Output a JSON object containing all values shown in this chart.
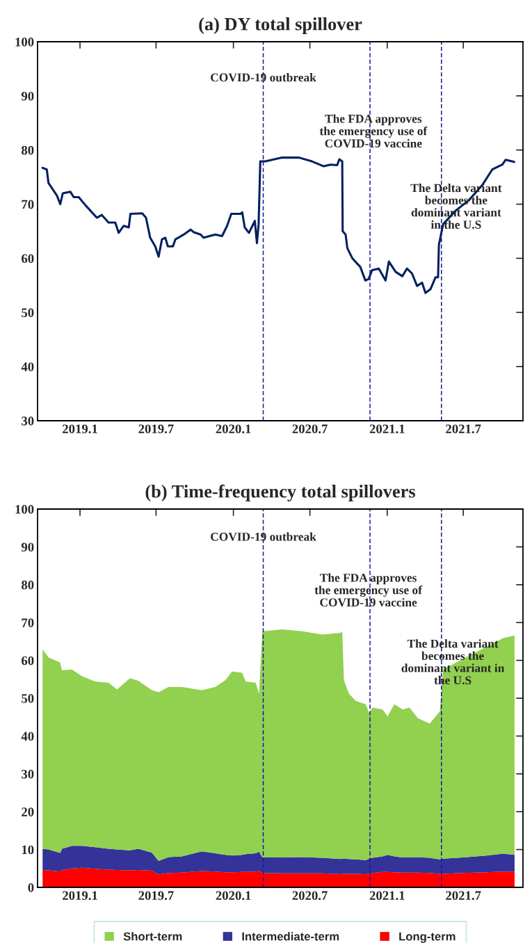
{
  "chart_data": [
    {
      "type": "line",
      "title": "(a) DY total spillover",
      "series": [
        {
          "color": "#002060",
          "x": [
            "2018-10-04",
            "2018-10-14",
            "2018-10-18",
            "2018-11-07",
            "2018-11-15",
            "2018-11-21",
            "2018-12-09",
            "2018-12-17",
            "2018-12-29",
            "2019-01-14",
            "2019-02-10",
            "2019-02-22",
            "2019-03-10",
            "2019-03-26",
            "2019-04-03",
            "2019-04-15",
            "2019-04-27",
            "2019-05-01",
            "2019-05-29",
            "2019-06-07",
            "2019-06-17",
            "2019-06-29",
            "2019-07-07",
            "2019-07-15",
            "2019-07-23",
            "2019-07-29",
            "2019-08-10",
            "2019-08-16",
            "2019-09-05",
            "2019-09-21",
            "2019-09-29",
            "2019-10-15",
            "2019-10-22",
            "2019-11-19",
            "2019-12-05",
            "2019-12-17",
            "2019-12-27",
            "2020-01-18",
            "2020-01-22",
            "2020-01-28",
            "2020-02-07",
            "2020-02-21",
            "2020-02-26",
            "2020-03-01",
            "2020-03-05",
            "2020-03-17",
            "2020-04-26",
            "2020-06-05",
            "2020-07-06",
            "2020-08-03",
            "2020-08-19",
            "2020-09-04",
            "2020-09-09",
            "2020-09-16",
            "2020-09-17",
            "2020-09-24",
            "2020-09-28",
            "2020-10-10",
            "2020-10-29",
            "2020-11-10",
            "2020-11-18",
            "2020-11-26",
            "2020-12-12",
            "2020-12-28",
            "2021-01-05",
            "2021-01-21",
            "2021-02-06",
            "2021-02-17",
            "2021-03-01",
            "2021-03-13",
            "2021-03-25",
            "2021-04-02",
            "2021-04-14",
            "2021-04-26",
            "2021-05-02",
            "2021-05-04",
            "2021-05-14",
            "2021-06-13",
            "2021-07-14",
            "2021-08-15",
            "2021-09-08",
            "2021-10-02",
            "2021-10-10",
            "2021-10-30"
          ],
          "values": [
            76.7,
            76.4,
            73.9,
            71.6,
            70.0,
            72.0,
            72.3,
            71.3,
            71.3,
            69.8,
            67.5,
            68.0,
            66.6,
            66.6,
            64.7,
            66.0,
            65.7,
            68.2,
            68.3,
            67.5,
            63.8,
            62.2,
            60.3,
            63.5,
            63.8,
            62.2,
            62.2,
            63.5,
            64.4,
            65.3,
            64.8,
            64.4,
            63.8,
            64.4,
            64.1,
            66.0,
            68.2,
            68.2,
            68.5,
            65.7,
            64.7,
            66.9,
            62.8,
            66.3,
            77.9,
            77.9,
            78.6,
            78.6,
            77.9,
            77.0,
            77.3,
            77.2,
            78.3,
            77.9,
            65.0,
            64.4,
            61.9,
            60.0,
            58.4,
            55.9,
            56.2,
            57.8,
            58.1,
            55.9,
            59.4,
            57.5,
            56.7,
            58.1,
            57.2,
            54.9,
            55.5,
            53.6,
            54.3,
            56.5,
            56.5,
            62.5,
            66.3,
            68.8,
            70.7,
            73.5,
            76.4,
            77.3,
            78.2,
            77.8
          ]
        }
      ],
      "xlim": [
        "2018-09-22",
        "2021-11-20"
      ],
      "xticks": [
        {
          "value": "2019-01-01",
          "label": "2019.1"
        },
        {
          "value": "2019-07-01",
          "label": "2019.7"
        },
        {
          "value": "2020-01-01",
          "label": "2020.1"
        },
        {
          "value": "2020-07-01",
          "label": "2020.7"
        },
        {
          "value": "2021-01-01",
          "label": "2021.1"
        },
        {
          "value": "2021-07-01",
          "label": "2021.7"
        }
      ],
      "ylim": [
        30,
        100
      ],
      "yticks": [
        30,
        40,
        50,
        60,
        70,
        80,
        90,
        100
      ],
      "grid": false,
      "line_style": "solid",
      "marker": "none",
      "ref_lines": [
        {
          "axis": "x",
          "value": "2020-03-12",
          "color": "#1a1a99",
          "line_style": "dashed"
        },
        {
          "axis": "x",
          "value": "2020-11-21",
          "color": "#1a1a99",
          "line_style": "dashed"
        },
        {
          "axis": "x",
          "value": "2021-05-10",
          "color": "#1a1a99",
          "line_style": "dashed"
        }
      ],
      "annotations": [
        {
          "text": "COVID-19 outbreak",
          "x": "2020-03-12",
          "y": 93.2
        },
        {
          "text": "The FDA approves\nthe emergency use of\nCOVID-19 vaccine",
          "x": "2020-11-29",
          "y": 83.3
        },
        {
          "text": "The Delta variant\nbecomes the\ndominant variant\nin the U.S",
          "x": "2021-06-14",
          "y": 69.4
        }
      ]
    },
    {
      "type": "area",
      "title": "(b) Time-frequency total spillovers",
      "stacked": true,
      "x": [
        "2018-10-04",
        "2018-10-18",
        "2018-11-15",
        "2018-11-19",
        "2018-12-13",
        "2019-01-06",
        "2019-02-06",
        "2019-03-10",
        "2019-03-30",
        "2019-04-30",
        "2019-05-20",
        "2019-06-21",
        "2019-07-07",
        "2019-07-31",
        "2019-08-31",
        "2019-10-18",
        "2019-11-19",
        "2019-12-13",
        "2019-12-29",
        "2020-01-22",
        "2020-01-30",
        "2020-02-23",
        "2020-03-02",
        "2020-03-10",
        "2020-04-27",
        "2020-06-13",
        "2020-07-31",
        "2020-09-12",
        "2020-09-16",
        "2020-09-20",
        "2020-10-02",
        "2020-10-18",
        "2020-11-11",
        "2020-11-19",
        "2020-11-27",
        "2020-12-21",
        "2021-01-02",
        "2021-01-18",
        "2021-02-07",
        "2021-02-23",
        "2021-03-15",
        "2021-04-12",
        "2021-05-06",
        "2021-05-14",
        "2021-06-30",
        "2021-08-25",
        "2021-10-04",
        "2021-10-31"
      ],
      "series": [
        {
          "name": "Long-term",
          "color": "#ff0000",
          "values": [
            4.6,
            4.5,
            4.2,
            4.6,
            5.0,
            5.2,
            4.9,
            4.7,
            4.6,
            4.5,
            4.6,
            4.4,
            3.4,
            3.8,
            3.9,
            4.3,
            4.2,
            4.0,
            4.0,
            4.1,
            4.2,
            4.2,
            4.3,
            3.8,
            3.7,
            3.7,
            3.7,
            3.5,
            3.6,
            3.6,
            3.6,
            3.6,
            3.5,
            3.6,
            3.8,
            4.1,
            4.1,
            4.0,
            3.9,
            3.9,
            3.9,
            3.8,
            3.6,
            3.6,
            3.8,
            4.0,
            4.2,
            4.2
          ]
        },
        {
          "name": "Intermediate-term",
          "color": "#333399",
          "values": [
            5.6,
            5.5,
            4.9,
            5.6,
            6.0,
            5.8,
            5.7,
            5.5,
            5.4,
            5.3,
            5.6,
            4.8,
            3.6,
            4.2,
            4.3,
            5.2,
            4.8,
            4.6,
            4.4,
            4.5,
            4.6,
            4.8,
            5.1,
            4.1,
            4.2,
            4.3,
            4.1,
            4.0,
            4.0,
            4.0,
            3.9,
            3.8,
            3.7,
            4.0,
            4.0,
            4.1,
            4.5,
            4.2,
            4.0,
            4.0,
            4.1,
            4.0,
            3.8,
            4.0,
            4.1,
            4.4,
            4.7,
            4.4
          ]
        },
        {
          "name": "Short-term",
          "color": "#92d050",
          "values": [
            52.7,
            50.8,
            50.3,
            47.2,
            46.6,
            44.8,
            43.8,
            43.9,
            42.3,
            45.5,
            44.4,
            42.9,
            44.6,
            45.0,
            44.8,
            42.6,
            44.0,
            46.2,
            48.7,
            48.1,
            45.6,
            45.1,
            41.8,
            59.8,
            60.3,
            59.7,
            59.0,
            59.8,
            60.1,
            47.2,
            43.7,
            41.9,
            41.2,
            38.5,
            39.7,
            38.8,
            36.6,
            40.2,
            39.1,
            39.6,
            36.7,
            35.5,
            39.1,
            50.0,
            52.5,
            55.2,
            57.0,
            58.0
          ]
        }
      ],
      "xlim": [
        "2018-09-22",
        "2021-11-20"
      ],
      "xticks": [
        {
          "value": "2019-01-01",
          "label": "2019.1"
        },
        {
          "value": "2019-07-01",
          "label": "2019.7"
        },
        {
          "value": "2020-01-01",
          "label": "2020.1"
        },
        {
          "value": "2020-07-01",
          "label": "2020.7"
        },
        {
          "value": "2021-01-01",
          "label": "2021.1"
        },
        {
          "value": "2021-07-01",
          "label": "2021.7"
        }
      ],
      "ylim": [
        0,
        100
      ],
      "yticks": [
        0,
        10,
        20,
        30,
        40,
        50,
        60,
        70,
        80,
        90,
        100
      ],
      "grid": false,
      "legend": "bottom",
      "ref_lines": [
        {
          "axis": "x",
          "value": "2020-03-12",
          "color": "#1a1a99",
          "line_style": "dashed"
        },
        {
          "axis": "x",
          "value": "2020-11-21",
          "color": "#1a1a99",
          "line_style": "dashed"
        },
        {
          "axis": "x",
          "value": "2021-05-10",
          "color": "#1a1a99",
          "line_style": "dashed"
        }
      ],
      "annotations": [
        {
          "text": "COVID-19 outbreak",
          "x": "2020-03-12",
          "y": 92.4
        },
        {
          "text": "The FDA approves\nthe emergency use of\nCOVID-19 vaccine",
          "x": "2020-11-17",
          "y": 78.3
        },
        {
          "text": "The Delta variant\nbecomes the\ndominant variant in\nthe U.S",
          "x": "2021-06-06",
          "y": 59.3
        }
      ]
    }
  ]
}
